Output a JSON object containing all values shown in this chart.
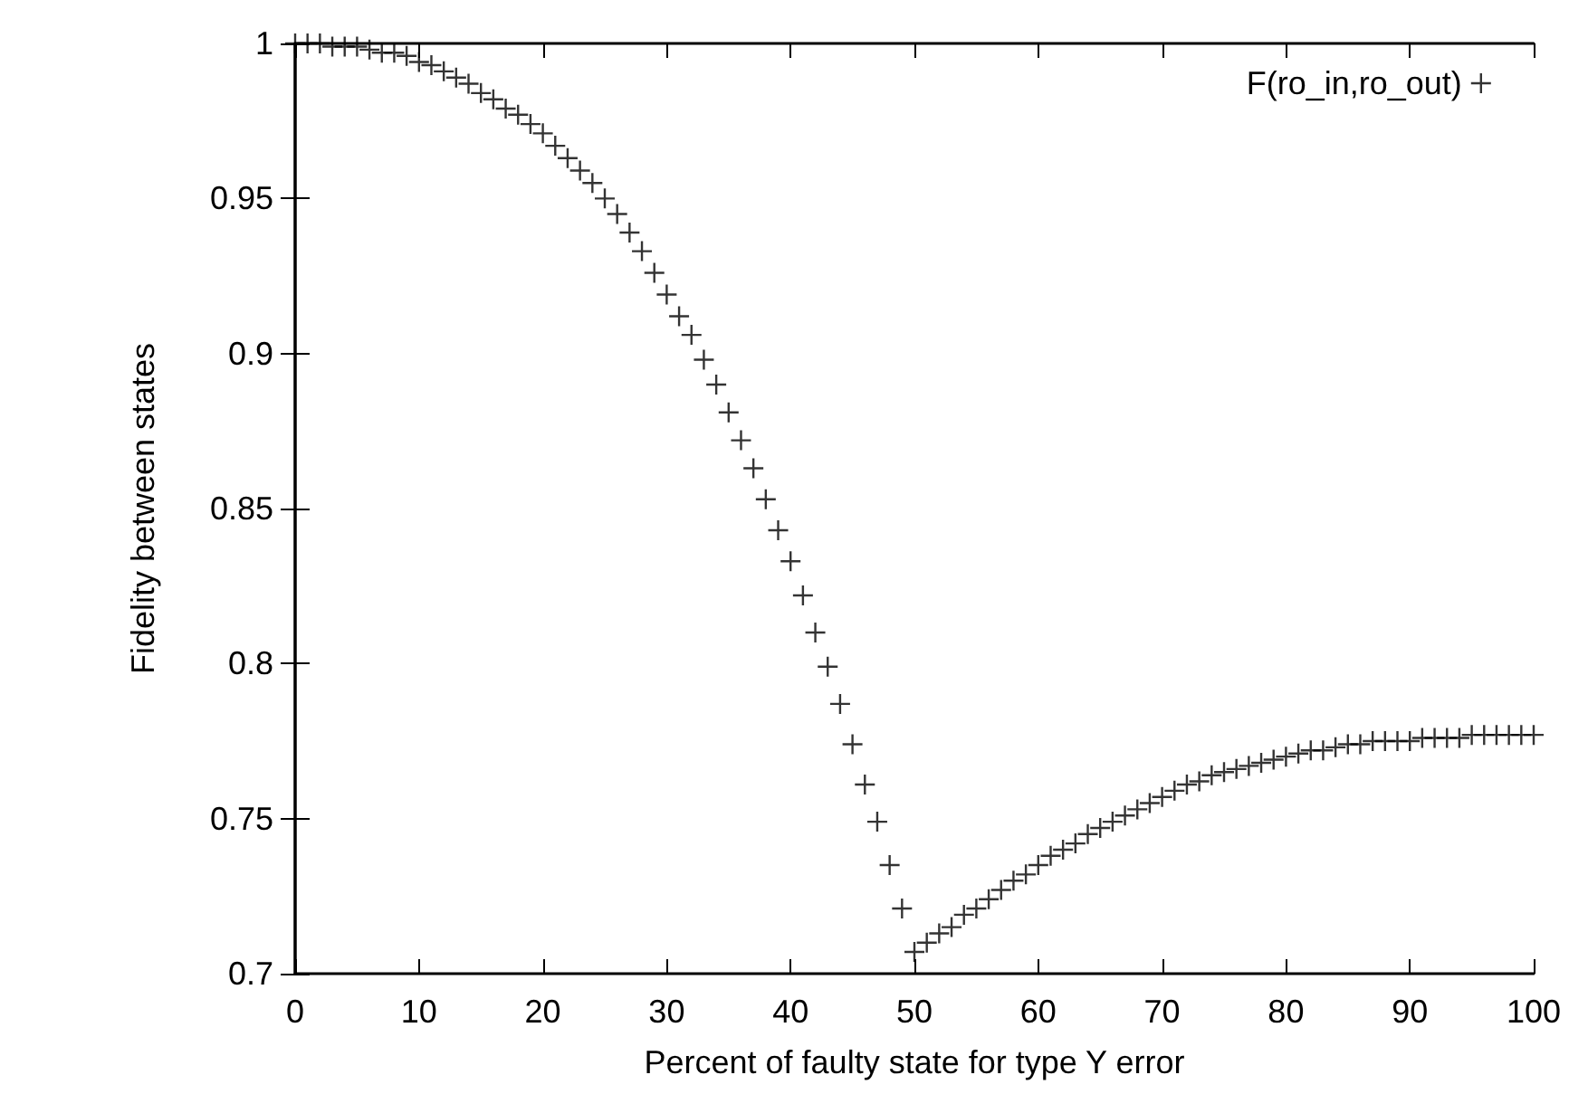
{
  "chart_data": {
    "type": "scatter",
    "xlabel": "Percent of faulty state for type Y error",
    "ylabel": "Fidelity between states",
    "x": [
      0,
      1,
      2,
      3,
      4,
      5,
      6,
      7,
      8,
      9,
      10,
      11,
      12,
      13,
      14,
      15,
      16,
      17,
      18,
      19,
      20,
      21,
      22,
      23,
      24,
      25,
      26,
      27,
      28,
      29,
      30,
      31,
      32,
      33,
      34,
      35,
      36,
      37,
      38,
      39,
      40,
      41,
      42,
      43,
      44,
      45,
      46,
      47,
      48,
      49,
      50,
      51,
      52,
      53,
      54,
      55,
      56,
      57,
      58,
      59,
      60,
      61,
      62,
      63,
      64,
      65,
      66,
      67,
      68,
      69,
      70,
      71,
      72,
      73,
      74,
      75,
      76,
      77,
      78,
      79,
      80,
      81,
      82,
      83,
      84,
      85,
      86,
      87,
      88,
      89,
      90,
      91,
      92,
      93,
      94,
      95,
      96,
      97,
      98,
      99,
      100
    ],
    "series": [
      {
        "name": "F(ro_in,ro_out)",
        "color": "#000000",
        "values": [
          1.0,
          1.0,
          1.0,
          0.999,
          0.999,
          0.999,
          0.998,
          0.997,
          0.997,
          0.996,
          0.994,
          0.993,
          0.991,
          0.989,
          0.987,
          0.984,
          0.982,
          0.979,
          0.977,
          0.974,
          0.971,
          0.967,
          0.963,
          0.959,
          0.955,
          0.95,
          0.945,
          0.939,
          0.933,
          0.926,
          0.919,
          0.912,
          0.906,
          0.898,
          0.89,
          0.881,
          0.872,
          0.863,
          0.853,
          0.843,
          0.833,
          0.822,
          0.81,
          0.799,
          0.787,
          0.774,
          0.761,
          0.749,
          0.735,
          0.721,
          0.707,
          0.71,
          0.713,
          0.715,
          0.719,
          0.721,
          0.724,
          0.727,
          0.73,
          0.732,
          0.735,
          0.738,
          0.74,
          0.742,
          0.745,
          0.747,
          0.749,
          0.751,
          0.753,
          0.755,
          0.757,
          0.759,
          0.761,
          0.762,
          0.764,
          0.765,
          0.766,
          0.767,
          0.768,
          0.769,
          0.77,
          0.771,
          0.772,
          0.772,
          0.773,
          0.774,
          0.774,
          0.775,
          0.775,
          0.775,
          0.775,
          0.776,
          0.776,
          0.776,
          0.776,
          0.777,
          0.777,
          0.777,
          0.777,
          0.777,
          0.777
        ]
      }
    ],
    "xlim": [
      0,
      100
    ],
    "xticks": [
      0,
      10,
      20,
      30,
      40,
      50,
      60,
      70,
      80,
      90,
      100
    ],
    "ylim": [
      0.7,
      1
    ],
    "yticks": [
      0.7,
      0.75,
      0.8,
      0.85,
      0.9,
      0.95,
      1
    ],
    "marker": "cross",
    "legend": "top right",
    "grid": false
  }
}
